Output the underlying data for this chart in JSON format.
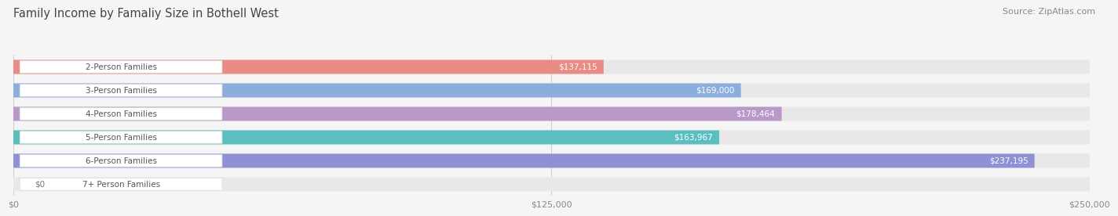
{
  "title": "Family Income by Famaliy Size in Bothell West",
  "source": "Source: ZipAtlas.com",
  "categories": [
    "2-Person Families",
    "3-Person Families",
    "4-Person Families",
    "5-Person Families",
    "6-Person Families",
    "7+ Person Families"
  ],
  "values": [
    137115,
    169000,
    178464,
    163967,
    237195,
    0
  ],
  "bar_colors": [
    "#E88C85",
    "#8BAEDD",
    "#B899C8",
    "#5BBFBF",
    "#9090D4",
    "#F0A0B8"
  ],
  "bar_bg_color": "#E8E8E8",
  "value_labels": [
    "$137,115",
    "$169,000",
    "$178,464",
    "$163,967",
    "$237,195",
    "$0"
  ],
  "x_ticks": [
    0,
    125000,
    250000
  ],
  "x_tick_labels": [
    "$0",
    "$125,000",
    "$250,000"
  ],
  "xlim": [
    0,
    250000
  ],
  "background_color": "#F5F5F5",
  "title_fontsize": 10.5,
  "source_fontsize": 8,
  "bar_label_fontsize": 7.5,
  "value_fontsize": 7.5
}
